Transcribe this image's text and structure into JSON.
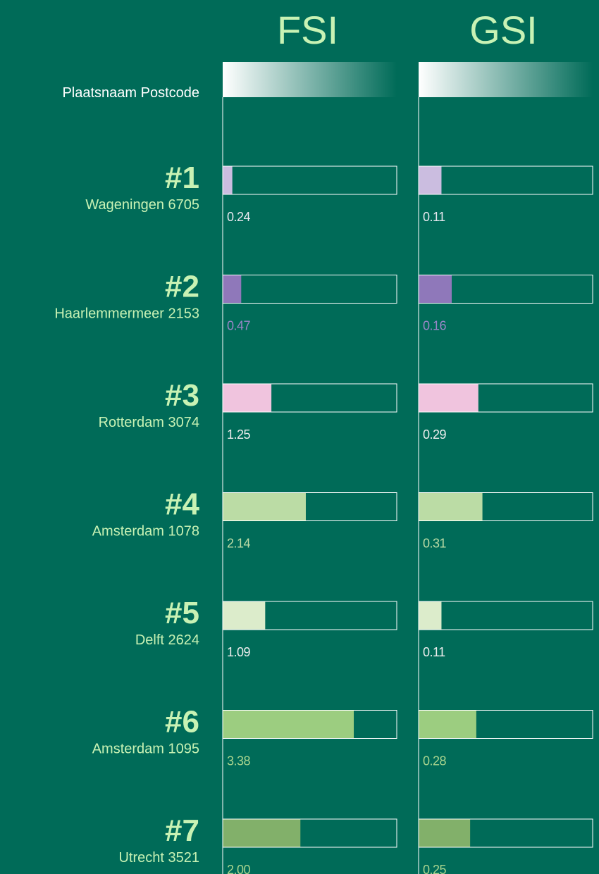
{
  "chart_data": {
    "type": "bar",
    "header": "Plaatsnaam Postcode",
    "ranks": [
      "#1",
      "#2",
      "#3",
      "#4",
      "#5",
      "#6",
      "#7"
    ],
    "categories": [
      "Wageningen 6705",
      "Haarlemmermeer 2153",
      "Rotterdam 3074",
      "Amsterdam 1078",
      "Delft 2624",
      "Amsterdam 1095",
      "Utrecht 3521"
    ],
    "colors": [
      "#cbbde0",
      "#8f78ba",
      "#f0c4de",
      "#bbdca5",
      "#dceccb",
      "#9ccd80",
      "#82b06a"
    ],
    "label_colors": [
      "#e8e8f0",
      "#9a86c8",
      "#eeeeee",
      "#bcdca6",
      "#eeeeee",
      "#a8d48e",
      "#a8d48e"
    ],
    "series": [
      {
        "name": "FSI",
        "values": [
          0.24,
          0.47,
          1.25,
          2.14,
          1.09,
          3.38,
          2.0
        ],
        "value_labels": [
          "0.24",
          "0.47",
          "1.25",
          "2.14",
          "1.09",
          "3.38",
          "2.00"
        ],
        "xlim": [
          0,
          4.5
        ]
      },
      {
        "name": "GSI",
        "values": [
          0.11,
          0.16,
          0.29,
          0.31,
          0.11,
          0.28,
          0.25
        ],
        "value_labels": [
          "0.11",
          "0.16",
          "0.29",
          "0.31",
          "0.11",
          "0.28",
          "0.25"
        ],
        "xlim": [
          0,
          0.85
        ]
      }
    ]
  }
}
